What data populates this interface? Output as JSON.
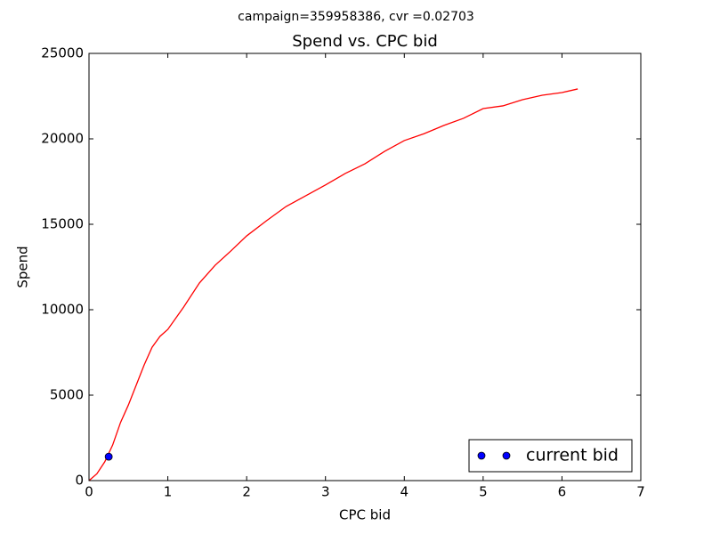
{
  "chart_data": {
    "type": "line",
    "suptitle": "campaign=359958386, cvr =0.02703",
    "title": "Spend vs. CPC bid",
    "x_label": "CPC bid",
    "y_label": "Spend",
    "xlim": [
      0,
      7
    ],
    "ylim": [
      0,
      25000
    ],
    "xticks": [
      0,
      1,
      2,
      3,
      4,
      5,
      6,
      7
    ],
    "yticks": [
      0,
      5000,
      10000,
      15000,
      20000,
      25000
    ],
    "grid": false,
    "legend": "lower right",
    "series": [
      {
        "color": "#ff0000",
        "style": "line",
        "x": [
          0,
          0.1,
          0.2,
          0.3,
          0.4,
          0.5,
          0.6,
          0.7,
          0.8,
          0.9,
          1,
          1.2,
          1.4,
          1.6,
          1.8,
          2,
          2.25,
          2.5,
          2.75,
          3,
          3.25,
          3.5,
          3.75,
          4,
          4.25,
          4.5,
          4.75,
          5,
          5.25,
          5.5,
          5.75,
          6,
          6.2
        ],
        "values": [
          0,
          400,
          1100,
          2080,
          3400,
          4430,
          5600,
          6770,
          7800,
          8440,
          8850,
          10150,
          11560,
          12600,
          13440,
          14320,
          15200,
          16040,
          16670,
          17300,
          17970,
          18540,
          19270,
          19900,
          20300,
          20780,
          21200,
          21770,
          21930,
          22290,
          22550,
          22710,
          22920
        ]
      },
      {
        "name": "current bid",
        "color": "#0000ff",
        "style": "points",
        "x": [
          0.25
        ],
        "values": [
          1400
        ]
      }
    ]
  }
}
